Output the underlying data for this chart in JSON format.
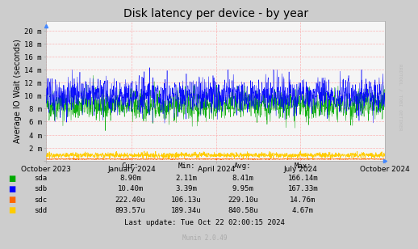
{
  "title": "Disk latency per device - by year",
  "ylabel": "Average IO Wait (seconds)",
  "background_color": "#CDCDCD",
  "plot_bg_color": "#F5F5F5",
  "grid_color": "#FF9999",
  "sda_color": "#00AA00",
  "sdb_color": "#0000FF",
  "sdc_color": "#FF6600",
  "sdd_color": "#FFCC00",
  "y_ticks": [
    0,
    2,
    4,
    6,
    8,
    10,
    12,
    14,
    16,
    18,
    20
  ],
  "y_labels": [
    "",
    "2 m",
    "4 m",
    "6 m",
    "8 m",
    "10 m",
    "12 m",
    "14 m",
    "16 m",
    "18 m",
    "20 m"
  ],
  "ylim": [
    0,
    21.5
  ],
  "x_tick_labels": [
    "October 2023",
    "January 2024",
    "April 2024",
    "July 2024",
    "October 2024"
  ],
  "x_positions": [
    0,
    92,
    183,
    274,
    365
  ],
  "legend_labels": [
    "sda",
    "sdb",
    "sdc",
    "sdd"
  ],
  "table_headers": [
    "Cur:",
    "Min:",
    "Avg:",
    "Max:"
  ],
  "table_data": [
    [
      "8.90m",
      "2.11m",
      "8.41m",
      "166.14m"
    ],
    [
      "10.40m",
      "3.39m",
      "9.95m",
      "167.33m"
    ],
    [
      "222.40u",
      "106.13u",
      "229.10u",
      "14.76m"
    ],
    [
      "893.57u",
      "189.34u",
      "840.58u",
      "4.67m"
    ]
  ],
  "last_update": "Last update: Tue Oct 22 02:00:15 2024",
  "munin_version": "Munin 2.0.49",
  "watermark": "RRDTOOL / TOBI OETIKER",
  "title_fontsize": 10,
  "axis_fontsize": 7,
  "tick_fontsize": 6.5,
  "table_fontsize": 6.5
}
